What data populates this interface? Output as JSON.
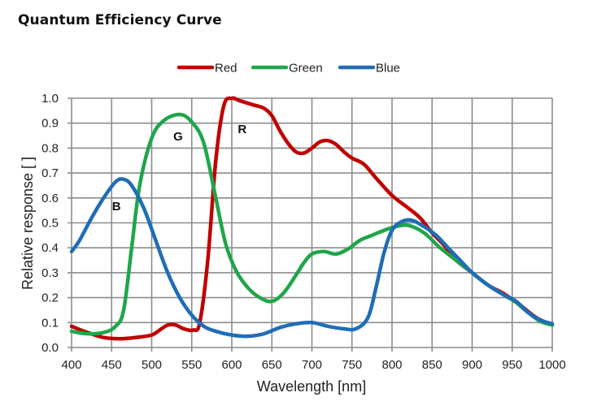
{
  "chart_data": {
    "type": "line",
    "title": "Quantum Efficiency Curve",
    "xlabel": "Wavelength [nm]",
    "ylabel": "Relative response [ ]",
    "xlim": [
      400,
      1000
    ],
    "ylim": [
      0.0,
      1.0
    ],
    "x_ticks": [
      400,
      450,
      500,
      550,
      600,
      650,
      700,
      750,
      800,
      850,
      900,
      950,
      1000
    ],
    "x_tick_labels": [
      "400",
      "450",
      "500",
      "550",
      "600",
      "650",
      "700",
      "750",
      "800",
      "850",
      "900",
      "950",
      "1000"
    ],
    "y_ticks": [
      0.0,
      0.1,
      0.2,
      0.3,
      0.4,
      0.5,
      0.6,
      0.7,
      0.8,
      0.9,
      1.0
    ],
    "y_tick_labels": [
      "0.0",
      "0.1",
      "0.2",
      "0.3",
      "0.4",
      "0.5",
      "0.6",
      "0.7",
      "0.8",
      "0.9",
      "1.0"
    ],
    "grid": true,
    "legend_position": "top-center",
    "series": [
      {
        "name": "Red",
        "color": "#c00000",
        "label": "R",
        "label_at": [
          613,
          0.86
        ],
        "points": [
          [
            400,
            0.085
          ],
          [
            420,
            0.06
          ],
          [
            440,
            0.04
          ],
          [
            460,
            0.035
          ],
          [
            480,
            0.04
          ],
          [
            500,
            0.05
          ],
          [
            510,
            0.07
          ],
          [
            520,
            0.09
          ],
          [
            530,
            0.09
          ],
          [
            540,
            0.075
          ],
          [
            552,
            0.07
          ],
          [
            560,
            0.1
          ],
          [
            570,
            0.35
          ],
          [
            580,
            0.75
          ],
          [
            590,
            0.97
          ],
          [
            600,
            1.0
          ],
          [
            610,
            0.99
          ],
          [
            625,
            0.975
          ],
          [
            640,
            0.96
          ],
          [
            650,
            0.93
          ],
          [
            660,
            0.87
          ],
          [
            670,
            0.82
          ],
          [
            680,
            0.785
          ],
          [
            690,
            0.78
          ],
          [
            700,
            0.8
          ],
          [
            710,
            0.825
          ],
          [
            720,
            0.83
          ],
          [
            730,
            0.815
          ],
          [
            740,
            0.785
          ],
          [
            750,
            0.76
          ],
          [
            765,
            0.735
          ],
          [
            780,
            0.68
          ],
          [
            800,
            0.61
          ],
          [
            820,
            0.56
          ],
          [
            835,
            0.52
          ],
          [
            850,
            0.46
          ],
          [
            865,
            0.41
          ],
          [
            880,
            0.35
          ],
          [
            900,
            0.3
          ],
          [
            920,
            0.25
          ],
          [
            940,
            0.215
          ],
          [
            960,
            0.17
          ],
          [
            980,
            0.12
          ],
          [
            1000,
            0.09
          ]
        ]
      },
      {
        "name": "Green",
        "color": "#1fa64a",
        "label": "G",
        "label_at": [
          533,
          0.83
        ],
        "points": [
          [
            400,
            0.065
          ],
          [
            420,
            0.055
          ],
          [
            440,
            0.06
          ],
          [
            455,
            0.085
          ],
          [
            465,
            0.15
          ],
          [
            475,
            0.4
          ],
          [
            485,
            0.65
          ],
          [
            500,
            0.84
          ],
          [
            515,
            0.91
          ],
          [
            535,
            0.935
          ],
          [
            550,
            0.905
          ],
          [
            565,
            0.82
          ],
          [
            580,
            0.6
          ],
          [
            592,
            0.42
          ],
          [
            605,
            0.31
          ],
          [
            620,
            0.24
          ],
          [
            635,
            0.2
          ],
          [
            650,
            0.185
          ],
          [
            665,
            0.22
          ],
          [
            680,
            0.29
          ],
          [
            690,
            0.34
          ],
          [
            700,
            0.375
          ],
          [
            715,
            0.385
          ],
          [
            730,
            0.375
          ],
          [
            745,
            0.395
          ],
          [
            760,
            0.43
          ],
          [
            775,
            0.45
          ],
          [
            790,
            0.47
          ],
          [
            805,
            0.485
          ],
          [
            820,
            0.49
          ],
          [
            840,
            0.46
          ],
          [
            860,
            0.4
          ],
          [
            880,
            0.35
          ],
          [
            900,
            0.3
          ],
          [
            920,
            0.25
          ],
          [
            940,
            0.21
          ],
          [
            955,
            0.18
          ],
          [
            970,
            0.14
          ],
          [
            985,
            0.105
          ],
          [
            1000,
            0.09
          ]
        ]
      },
      {
        "name": "Blue",
        "color": "#1f6db7",
        "label": "B",
        "label_at": [
          456,
          0.55
        ],
        "points": [
          [
            400,
            0.385
          ],
          [
            410,
            0.43
          ],
          [
            425,
            0.52
          ],
          [
            440,
            0.6
          ],
          [
            455,
            0.665
          ],
          [
            465,
            0.675
          ],
          [
            475,
            0.65
          ],
          [
            490,
            0.56
          ],
          [
            505,
            0.43
          ],
          [
            520,
            0.3
          ],
          [
            535,
            0.2
          ],
          [
            550,
            0.13
          ],
          [
            565,
            0.085
          ],
          [
            580,
            0.065
          ],
          [
            600,
            0.05
          ],
          [
            620,
            0.045
          ],
          [
            640,
            0.055
          ],
          [
            660,
            0.08
          ],
          [
            680,
            0.095
          ],
          [
            700,
            0.1
          ],
          [
            720,
            0.085
          ],
          [
            740,
            0.075
          ],
          [
            755,
            0.075
          ],
          [
            770,
            0.12
          ],
          [
            780,
            0.24
          ],
          [
            790,
            0.38
          ],
          [
            800,
            0.47
          ],
          [
            812,
            0.505
          ],
          [
            825,
            0.51
          ],
          [
            840,
            0.485
          ],
          [
            855,
            0.45
          ],
          [
            870,
            0.4
          ],
          [
            885,
            0.35
          ],
          [
            900,
            0.3
          ],
          [
            920,
            0.25
          ],
          [
            940,
            0.21
          ],
          [
            955,
            0.185
          ],
          [
            970,
            0.14
          ],
          [
            985,
            0.11
          ],
          [
            1000,
            0.095
          ]
        ]
      }
    ]
  }
}
